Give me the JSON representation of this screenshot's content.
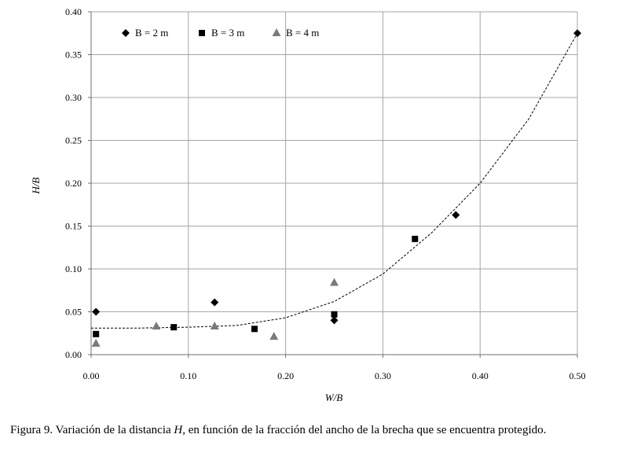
{
  "chart_data": {
    "type": "scatter",
    "xlabel": "W/B",
    "ylabel": "H/B",
    "xlim": [
      0,
      0.5
    ],
    "ylim": [
      0,
      0.4
    ],
    "xticks": [
      "0.00",
      "0.10",
      "0.20",
      "0.30",
      "0.40",
      "0.50"
    ],
    "yticks": [
      "0.00",
      "0.05",
      "0.10",
      "0.15",
      "0.20",
      "0.25",
      "0.30",
      "0.35",
      "0.40"
    ],
    "grid": true,
    "legend_position": "top-left",
    "series": [
      {
        "name": "B = 2 m",
        "marker": "diamond",
        "color": "#000000",
        "points": [
          [
            0.005,
            0.05
          ],
          [
            0.127,
            0.061
          ],
          [
            0.25,
            0.04
          ],
          [
            0.375,
            0.163
          ],
          [
            0.5,
            0.375
          ]
        ]
      },
      {
        "name": "B = 3 m",
        "marker": "square",
        "color": "#000000",
        "points": [
          [
            0.005,
            0.024
          ],
          [
            0.085,
            0.032
          ],
          [
            0.168,
            0.03
          ],
          [
            0.25,
            0.047
          ],
          [
            0.333,
            0.135
          ]
        ]
      },
      {
        "name": "B = 4 m",
        "marker": "triangle",
        "color": "#7a7a7a",
        "points": [
          [
            0.005,
            0.013
          ],
          [
            0.067,
            0.033
          ],
          [
            0.127,
            0.033
          ],
          [
            0.188,
            0.021
          ],
          [
            0.25,
            0.084
          ]
        ]
      }
    ],
    "trendline": {
      "style": "dashed",
      "points": [
        [
          0.0,
          0.031
        ],
        [
          0.05,
          0.031
        ],
        [
          0.1,
          0.032
        ],
        [
          0.15,
          0.034
        ],
        [
          0.2,
          0.043
        ],
        [
          0.25,
          0.062
        ],
        [
          0.3,
          0.094
        ],
        [
          0.35,
          0.142
        ],
        [
          0.4,
          0.2
        ],
        [
          0.45,
          0.275
        ],
        [
          0.5,
          0.375
        ]
      ]
    }
  },
  "caption": {
    "prefix": "Figura 9. Variación de la distancia ",
    "var": "H,",
    "suffix": " en función de la fracción del ancho de la brecha que se encuentra protegido."
  }
}
